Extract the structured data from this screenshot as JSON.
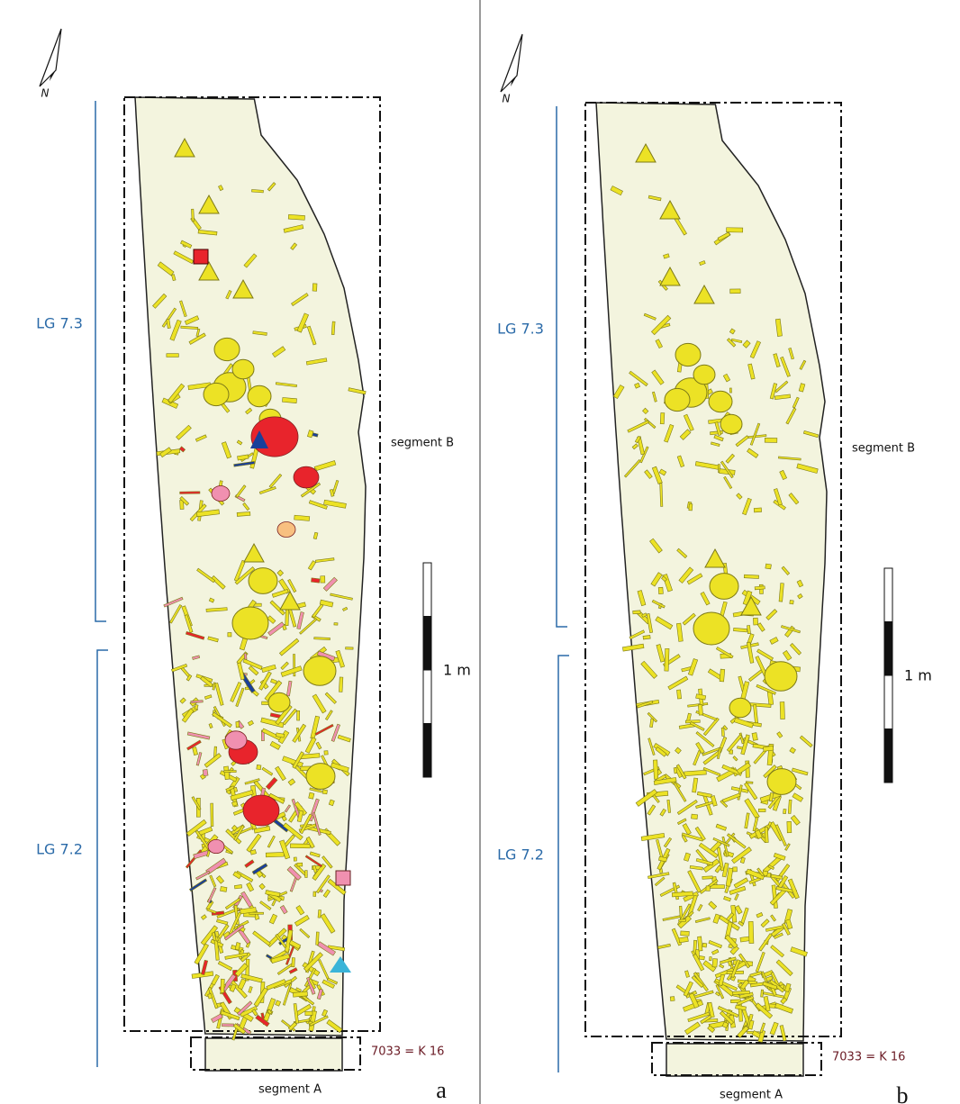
{
  "panels": [
    {
      "label": "a",
      "north": "N",
      "phase_upper": "LG 7.3",
      "phase_lower": "LG 7.2",
      "segment_b": "segment B",
      "segment_a": "segment A",
      "context": "7033 = K 16",
      "scale": "1 m"
    },
    {
      "label": "b",
      "north": "N",
      "phase_upper": "LG 7.3",
      "phase_lower": "LG 7.2",
      "segment_b": "segment B",
      "segment_a": "segment A",
      "context": "7033 = K 16",
      "scale": "1 m"
    }
  ]
}
